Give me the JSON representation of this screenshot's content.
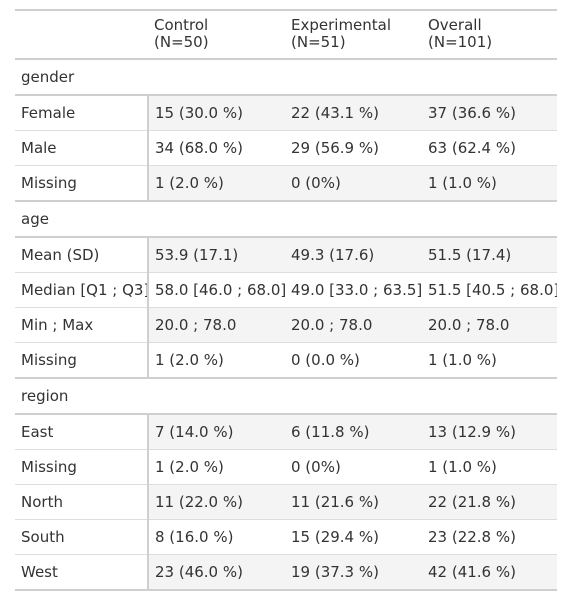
{
  "headers": [
    {
      "name": "",
      "n": ""
    },
    {
      "name": "Control",
      "n": "(N=50)"
    },
    {
      "name": "Experimental",
      "n": "(N=51)"
    },
    {
      "name": "Overall",
      "n": "(N=101)"
    }
  ],
  "groups": [
    {
      "label": "gender",
      "rows": [
        {
          "label": "Female",
          "values": [
            "15 (30.0 %)",
            "22 (43.1 %)",
            "37 (36.6 %)"
          ]
        },
        {
          "label": "Male",
          "values": [
            "34 (68.0 %)",
            "29 (56.9 %)",
            "63 (62.4 %)"
          ]
        },
        {
          "label": "Missing",
          "values": [
            "1 (2.0 %)",
            "0 (0%)",
            "1 (1.0 %)"
          ]
        }
      ]
    },
    {
      "label": "age",
      "rows": [
        {
          "label": "Mean (SD)",
          "values": [
            "53.9 (17.1)",
            "49.3 (17.6)",
            "51.5 (17.4)"
          ]
        },
        {
          "label": "Median [Q1 ; Q3]",
          "values": [
            "58.0 [46.0 ; 68.0]",
            "49.0 [33.0 ; 63.5]",
            "51.5 [40.5 ; 68.0]"
          ]
        },
        {
          "label": "Min ; Max",
          "values": [
            "20.0 ; 78.0",
            "20.0 ; 78.0",
            "20.0 ; 78.0"
          ]
        },
        {
          "label": "Missing",
          "values": [
            "1 (2.0 %)",
            "0 (0.0 %)",
            "1 (1.0 %)"
          ]
        }
      ]
    },
    {
      "label": "region",
      "rows": [
        {
          "label": "East",
          "values": [
            "7 (14.0 %)",
            "6 (11.8 %)",
            "13 (12.9 %)"
          ]
        },
        {
          "label": "Missing",
          "values": [
            "1 (2.0 %)",
            "0 (0%)",
            "1 (1.0 %)"
          ]
        },
        {
          "label": "North",
          "values": [
            "11 (22.0 %)",
            "11 (21.6 %)",
            "22 (21.8 %)"
          ]
        },
        {
          "label": "South",
          "values": [
            "8 (16.0 %)",
            "15 (29.4 %)",
            "23 (22.8 %)"
          ]
        },
        {
          "label": "West",
          "values": [
            "23 (46.0 %)",
            "19 (37.3 %)",
            "42 (41.6 %)"
          ]
        }
      ]
    }
  ]
}
